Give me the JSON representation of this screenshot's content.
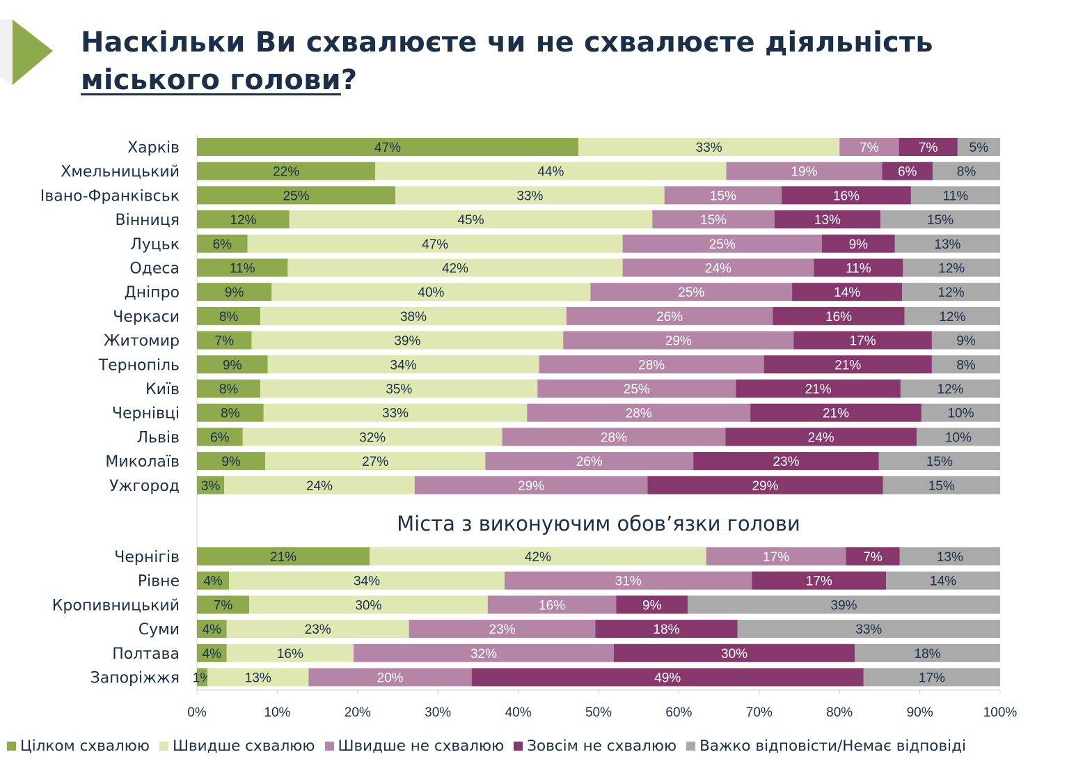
{
  "title": {
    "line1": "Наскільки Ви схвалюєте чи не схвалюєте діяльність",
    "line2_underlined": "міського голови",
    "line2_end": "?"
  },
  "colors": {
    "accent_triangle": "#8faa4c",
    "title": "#1b2f48",
    "series": [
      "#8faa4c",
      "#dfe8b2",
      "#b585a7",
      "#86386d",
      "#aaaaaa"
    ]
  },
  "chart_data": {
    "type": "bar",
    "orientation": "horizontal",
    "stacked": true,
    "xlim": [
      0,
      100
    ],
    "x_ticks": [
      "0%",
      "10%",
      "20%",
      "30%",
      "40%",
      "50%",
      "60%",
      "70%",
      "80%",
      "90%",
      "100%"
    ],
    "legend_position": "bottom",
    "group2_label": "Міста з виконуючим обов’язки голови",
    "series": [
      {
        "name": "Цілком схвалюю"
      },
      {
        "name": "Швидше схвалюю"
      },
      {
        "name": "Швидше не схвалюю"
      },
      {
        "name": "Зовсім не схвалюю"
      },
      {
        "name": "Важко відповісти/Немає відповіді"
      }
    ],
    "groups": [
      {
        "label": "",
        "rows": [
          {
            "category": "Харків",
            "values": [
              47.5,
              32.5,
              7.4,
              7.3,
              5.3
            ],
            "labels": [
              "47%",
              "33%",
              "7%",
              "7%",
              "5%"
            ]
          },
          {
            "category": "Хмельницький",
            "values": [
              22.2,
              43.7,
              19.4,
              6.3,
              8.4
            ],
            "labels": [
              "22%",
              "44%",
              "19%",
              "6%",
              "8%"
            ]
          },
          {
            "category": "Івано-Франківськ",
            "values": [
              24.7,
              33.5,
              14.6,
              16.1,
              11.1
            ],
            "labels": [
              "25%",
              "33%",
              "15%",
              "16%",
              "11%"
            ]
          },
          {
            "category": "Вінниця",
            "values": [
              11.5,
              45.2,
              15.2,
              13.2,
              14.9
            ],
            "labels": [
              "12%",
              "45%",
              "15%",
              "13%",
              "15%"
            ]
          },
          {
            "category": "Луцьк",
            "values": [
              6.3,
              46.7,
              24.8,
              9.1,
              13.1
            ],
            "labels": [
              "6%",
              "47%",
              "25%",
              "9%",
              "13%"
            ]
          },
          {
            "category": "Одеса",
            "values": [
              11.3,
              41.7,
              23.8,
              11.1,
              12.1
            ],
            "labels": [
              "11%",
              "42%",
              "24%",
              "11%",
              "12%"
            ]
          },
          {
            "category": "Дніпро",
            "values": [
              9.3,
              39.7,
              25.1,
              13.7,
              12.2
            ],
            "labels": [
              "9%",
              "40%",
              "25%",
              "14%",
              "12%"
            ]
          },
          {
            "category": "Черкаси",
            "values": [
              7.9,
              38.1,
              25.7,
              16.4,
              11.9
            ],
            "labels": [
              "8%",
              "38%",
              "26%",
              "16%",
              "12%"
            ]
          },
          {
            "category": "Житомир",
            "values": [
              6.8,
              38.8,
              28.7,
              17.2,
              8.5
            ],
            "labels": [
              "7%",
              "39%",
              "29%",
              "17%",
              "9%"
            ]
          },
          {
            "category": "Тернопіль",
            "values": [
              8.8,
              33.8,
              28.0,
              20.9,
              8.5
            ],
            "labels": [
              "9%",
              "34%",
              "28%",
              "21%",
              "8%"
            ]
          },
          {
            "category": "Київ",
            "values": [
              7.9,
              34.5,
              24.7,
              20.5,
              12.4
            ],
            "labels": [
              "8%",
              "35%",
              "25%",
              "21%",
              "12%"
            ]
          },
          {
            "category": "Чернівці",
            "values": [
              8.3,
              32.8,
              27.8,
              21.3,
              9.8
            ],
            "labels": [
              "8%",
              "33%",
              "28%",
              "21%",
              "10%"
            ]
          },
          {
            "category": "Львів",
            "values": [
              5.7,
              32.3,
              27.8,
              23.8,
              10.4
            ],
            "labels": [
              "6%",
              "32%",
              "28%",
              "24%",
              "10%"
            ]
          },
          {
            "category": "Миколаїв",
            "values": [
              8.5,
              27.4,
              25.9,
              23.1,
              15.1
            ],
            "labels": [
              "9%",
              "27%",
              "26%",
              "23%",
              "15%"
            ]
          },
          {
            "category": "Ужгород",
            "values": [
              3.4,
              23.7,
              29.0,
              29.3,
              14.6
            ],
            "labels": [
              "3%",
              "24%",
              "29%",
              "29%",
              "15%"
            ]
          }
        ]
      },
      {
        "label": "Міста з виконуючим обов’язки голови",
        "rows": [
          {
            "category": "Чернігів",
            "values": [
              21.5,
              41.9,
              17.4,
              6.7,
              12.5
            ],
            "labels": [
              "21%",
              "42%",
              "17%",
              "7%",
              "13%"
            ]
          },
          {
            "category": "Рівне",
            "values": [
              4.0,
              34.3,
              30.8,
              16.7,
              14.2
            ],
            "labels": [
              "4%",
              "34%",
              "31%",
              "17%",
              "14%"
            ]
          },
          {
            "category": "Кропивницький",
            "values": [
              6.5,
              29.7,
              16.0,
              8.9,
              38.9
            ],
            "labels": [
              "7%",
              "30%",
              "16%",
              "9%",
              "39%"
            ]
          },
          {
            "category": "Суми",
            "values": [
              3.7,
              22.7,
              23.2,
              17.7,
              32.7
            ],
            "labels": [
              "4%",
              "23%",
              "23%",
              "18%",
              "33%"
            ]
          },
          {
            "category": "Полтава",
            "values": [
              3.7,
              15.8,
              32.4,
              30.0,
              18.1
            ],
            "labels": [
              "4%",
              "16%",
              "32%",
              "30%",
              "18%"
            ]
          },
          {
            "category": "Запоріжжя",
            "values": [
              1.3,
              12.6,
              20.3,
              48.8,
              17.0
            ],
            "labels": [
              "1%",
              "13%",
              "20%",
              "49%",
              "17%"
            ]
          }
        ]
      }
    ]
  }
}
